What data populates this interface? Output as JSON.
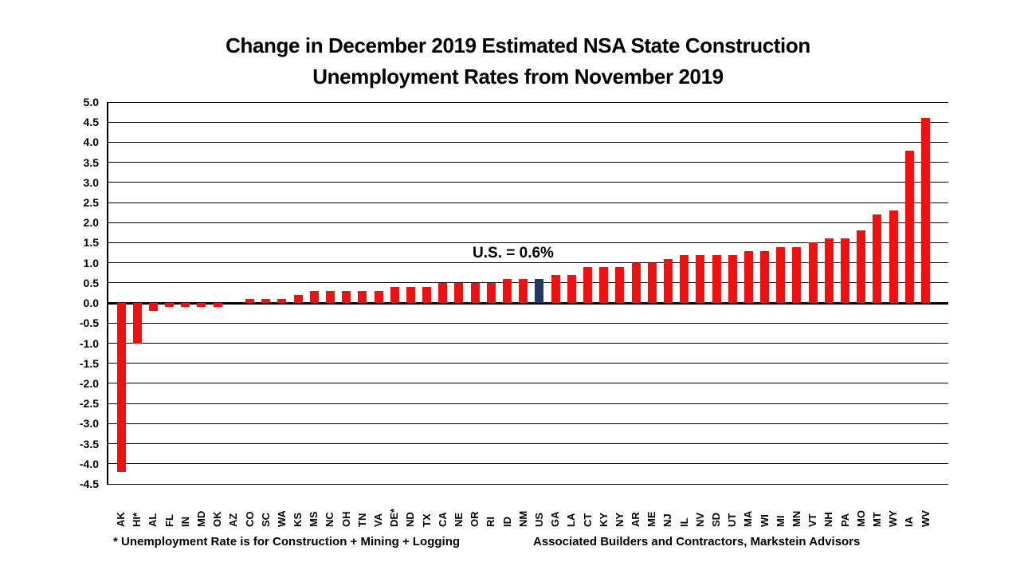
{
  "title": {
    "line1": "Change in December 2019 Estimated NSA State Construction",
    "line2": "Unemployment Rates from November 2019"
  },
  "annotation": "U.S. = 0.6%",
  "footnotes": {
    "left": "* Unemployment Rate is for Construction + Mining + Logging",
    "right": "Associated Builders and Contractors, Markstein Advisors"
  },
  "colors": {
    "bar": "#f20f0f",
    "highlight_bar": "#1f3864",
    "grid": "#000000",
    "background": "#ffffff"
  },
  "chart_data": {
    "type": "bar",
    "title": "Change in December 2019 Estimated NSA State Construction Unemployment Rates from November 2019",
    "xlabel": "",
    "ylabel": "",
    "ylim": [
      -4.5,
      5.0
    ],
    "ytick_step": 0.5,
    "grid": true,
    "legend": false,
    "annotation": "U.S. = 0.6%",
    "highlight_category": "US",
    "categories": [
      "AK",
      "HI*",
      "AL",
      "FL",
      "IN",
      "MD",
      "OK",
      "AZ",
      "CO",
      "SC",
      "WA",
      "KS",
      "MS",
      "NC",
      "OH",
      "TN",
      "VA",
      "DE*",
      "ND",
      "TX",
      "CA",
      "NE",
      "OR",
      "RI",
      "ID",
      "NM",
      "US",
      "GA",
      "LA",
      "CT",
      "KY",
      "NY",
      "AR",
      "ME",
      "NJ",
      "IL",
      "NV",
      "SD",
      "UT",
      "MA",
      "WI",
      "MI",
      "MN",
      "VT",
      "NH",
      "PA",
      "MO",
      "MT",
      "WY",
      "IA",
      "WV"
    ],
    "values": [
      -4.2,
      -1.0,
      -0.2,
      -0.1,
      -0.1,
      -0.1,
      -0.1,
      0.0,
      0.1,
      0.1,
      0.1,
      0.2,
      0.3,
      0.3,
      0.3,
      0.3,
      0.3,
      0.4,
      0.4,
      0.4,
      0.5,
      0.5,
      0.5,
      0.5,
      0.6,
      0.6,
      0.6,
      0.7,
      0.7,
      0.9,
      0.9,
      0.9,
      1.0,
      1.0,
      1.1,
      1.2,
      1.2,
      1.2,
      1.2,
      1.3,
      1.3,
      1.4,
      1.4,
      1.5,
      1.6,
      1.6,
      1.8,
      2.2,
      2.3,
      3.8,
      4.6
    ]
  }
}
